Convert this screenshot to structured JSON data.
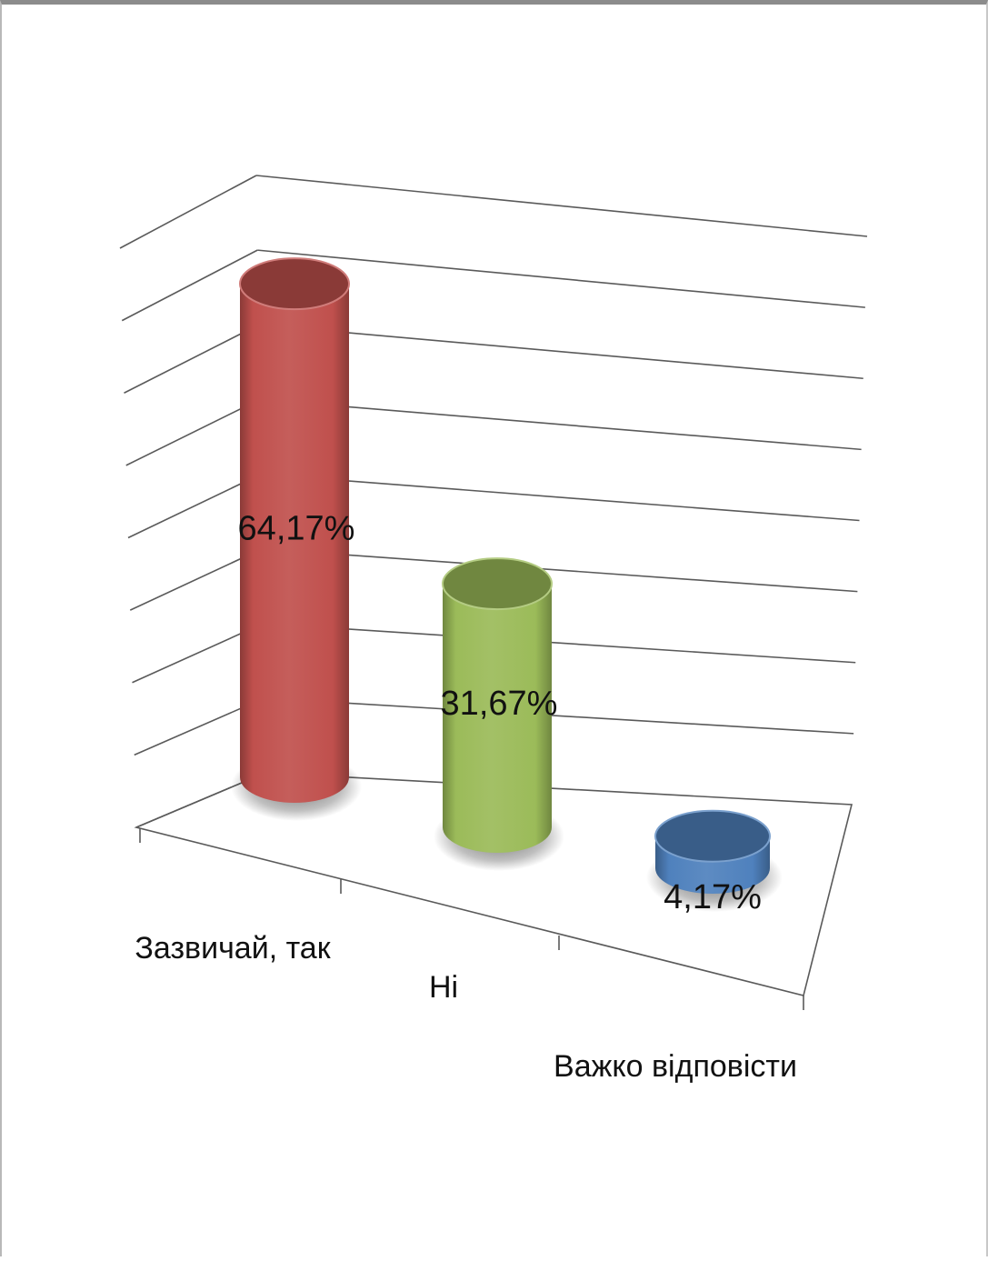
{
  "chart_data": {
    "type": "bar",
    "style": "3d-cylinder",
    "categories": [
      "Зазвичай, так",
      "Ні",
      "Важко відповісти"
    ],
    "values": [
      64.17,
      31.67,
      4.17
    ],
    "data_labels": [
      "64,17%",
      "31,67%",
      "4,17%"
    ],
    "colors": [
      "#c0504d",
      "#9bbb59",
      "#4f81bd"
    ],
    "ylim": [
      0,
      70
    ],
    "grid": true,
    "legend": "none",
    "title": "",
    "xlabel": "",
    "ylabel": ""
  }
}
